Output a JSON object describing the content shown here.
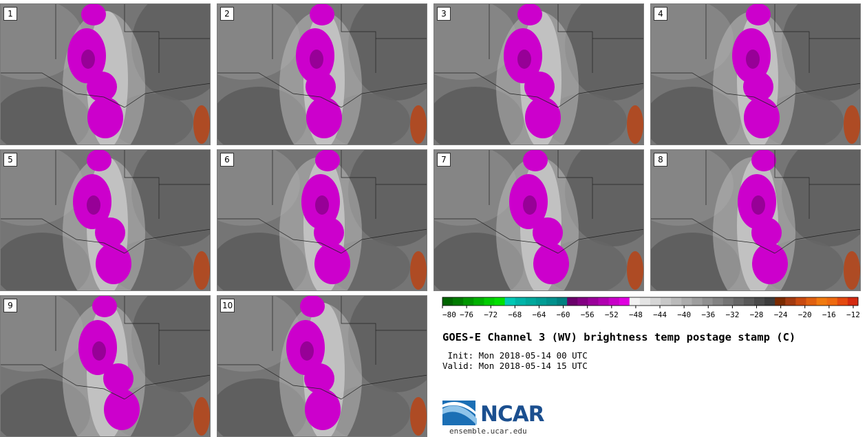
{
  "panels": [
    {
      "label": "1"
    },
    {
      "label": "2"
    },
    {
      "label": "3"
    },
    {
      "label": "4"
    },
    {
      "label": "5"
    },
    {
      "label": "6"
    },
    {
      "label": "7"
    },
    {
      "label": "8"
    },
    {
      "label": "9"
    },
    {
      "label": "10"
    }
  ],
  "colorbar": {
    "ticks": [
      "−80",
      "−76",
      "−72",
      "−68",
      "−64",
      "−60",
      "−56",
      "−52",
      "−48",
      "−44",
      "−40",
      "−36",
      "−32",
      "−28",
      "−24",
      "−20",
      "−16",
      "−12"
    ],
    "colors": [
      "#006400",
      "#007a00",
      "#009600",
      "#00b000",
      "#00cc00",
      "#00e000",
      "#00c8b4",
      "#00b4a8",
      "#00a89c",
      "#009c94",
      "#00908c",
      "#008080",
      "#6a006a",
      "#820082",
      "#9a009a",
      "#b000b0",
      "#c800c8",
      "#e000e0",
      "#f2f2f2",
      "#e4e4e4",
      "#d6d6d6",
      "#c8c8c8",
      "#bababa",
      "#acacac",
      "#9e9e9e",
      "#909090",
      "#828282",
      "#747474",
      "#666666",
      "#585858",
      "#4a4a4a",
      "#3c3c3c",
      "#7a2a00",
      "#a23a10",
      "#c84a10",
      "#e06010",
      "#f07a10",
      "#ee6a10",
      "#e44a10",
      "#d42a10"
    ]
  },
  "info": {
    "title": "GOES-E Channel 3 (WV) brightness temp postage stamp (C)",
    "init": " Init: Mon 2018-05-14 00 UTC",
    "valid": "Valid: Mon 2018-05-14 15 UTC"
  },
  "logo": {
    "text": "NCAR",
    "url": "ensemble.ucar.edu"
  }
}
